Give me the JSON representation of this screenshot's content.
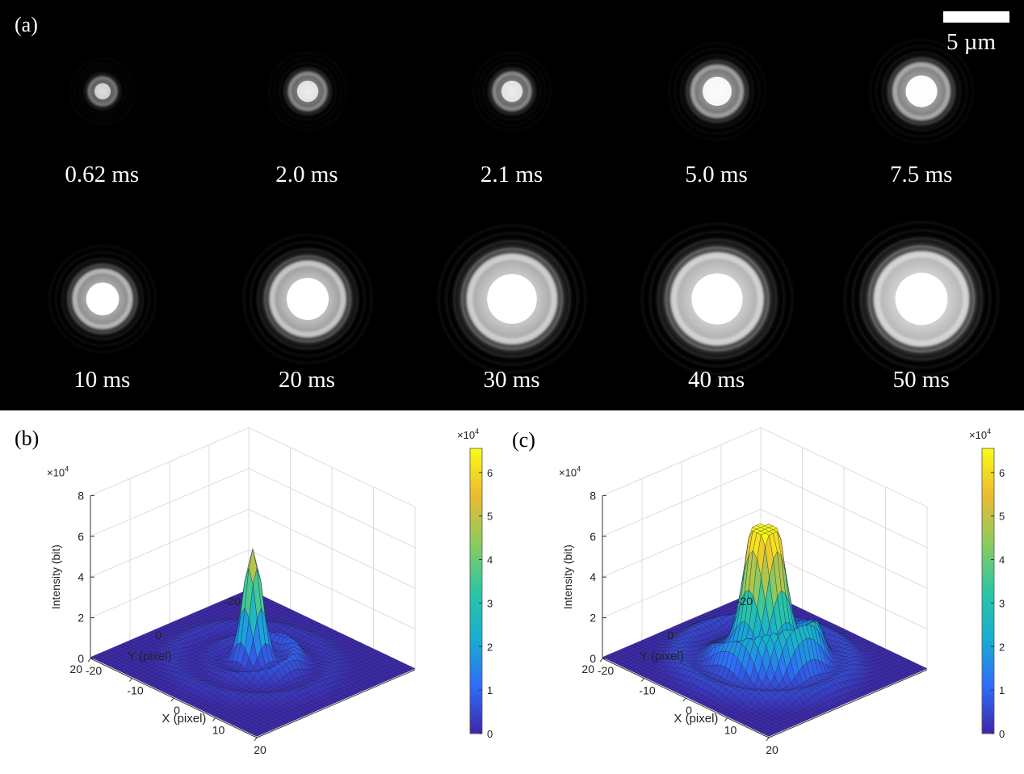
{
  "figure": {
    "panel_a": {
      "label": "(a)",
      "scale_bar": "5 µm",
      "frames": [
        {
          "time": "0.62 ms",
          "core": 0.25,
          "ring": 0.15
        },
        {
          "time": "2.0 ms",
          "core": 0.45,
          "ring": 0.22
        },
        {
          "time": "2.1 ms",
          "core": 0.45,
          "ring": 0.22
        },
        {
          "time": "5.0 ms",
          "core": 0.75,
          "ring": 0.32
        },
        {
          "time": "7.5 ms",
          "core": 0.85,
          "ring": 0.38
        },
        {
          "time": "10 ms",
          "core": 0.9,
          "ring": 0.45
        },
        {
          "time": "20 ms",
          "core": 1.25,
          "ring": 0.55
        },
        {
          "time": "30 ms",
          "core": 1.55,
          "ring": 0.62
        },
        {
          "time": "40 ms",
          "core": 1.6,
          "ring": 0.65
        },
        {
          "time": "50 ms",
          "core": 1.65,
          "ring": 0.68
        }
      ]
    },
    "panel_b": {
      "label": "(b)"
    },
    "panel_c": {
      "label": "(c)"
    }
  },
  "chart_data": [
    {
      "type": "surface",
      "panel": "(b)",
      "xlabel": "X (pixel)",
      "ylabel": "Y (pixel)",
      "zlabel": "Intensity (bit)",
      "z_multiplier": "×10^4",
      "xticks": [
        "-20",
        "-10",
        "0",
        "10",
        "20"
      ],
      "yticks": [
        "20",
        "0",
        "-20"
      ],
      "zticks": [
        "0",
        "2",
        "4",
        "6",
        "8"
      ],
      "zlim": [
        0,
        80000
      ],
      "xlim": [
        -20,
        20
      ],
      "ylim": [
        -20,
        20
      ],
      "colorbar": {
        "ticks": [
          "0",
          "1",
          "2",
          "3",
          "4",
          "5",
          "6"
        ],
        "range": [
          0,
          65535
        ],
        "multiplier": "×10^4"
      },
      "peak_intensity": 56000,
      "saturated": false,
      "colormap": [
        "#3e26a8",
        "#2e6ef7",
        "#17aed0",
        "#2bc6a4",
        "#8ccc5d",
        "#ebba30",
        "#f9fb15"
      ]
    },
    {
      "type": "surface",
      "panel": "(c)",
      "xlabel": "X (pixel)",
      "ylabel": "Y (pixel)",
      "zlabel": "Intensity (bit)",
      "z_multiplier": "×10^4",
      "xticks": [
        "-20",
        "-10",
        "0",
        "10",
        "20"
      ],
      "yticks": [
        "20",
        "0",
        "-20"
      ],
      "zticks": [
        "0",
        "2",
        "4",
        "6",
        "8"
      ],
      "zlim": [
        0,
        80000
      ],
      "xlim": [
        -20,
        20
      ],
      "ylim": [
        -20,
        20
      ],
      "colorbar": {
        "ticks": [
          "0",
          "1",
          "2",
          "3",
          "4",
          "5",
          "6"
        ],
        "range": [
          0,
          65535
        ],
        "multiplier": "×10^4"
      },
      "peak_intensity": 65535,
      "saturated": true,
      "colormap": [
        "#3e26a8",
        "#2e6ef7",
        "#17aed0",
        "#2bc6a4",
        "#8ccc5d",
        "#ebba30",
        "#f9fb15"
      ]
    }
  ]
}
